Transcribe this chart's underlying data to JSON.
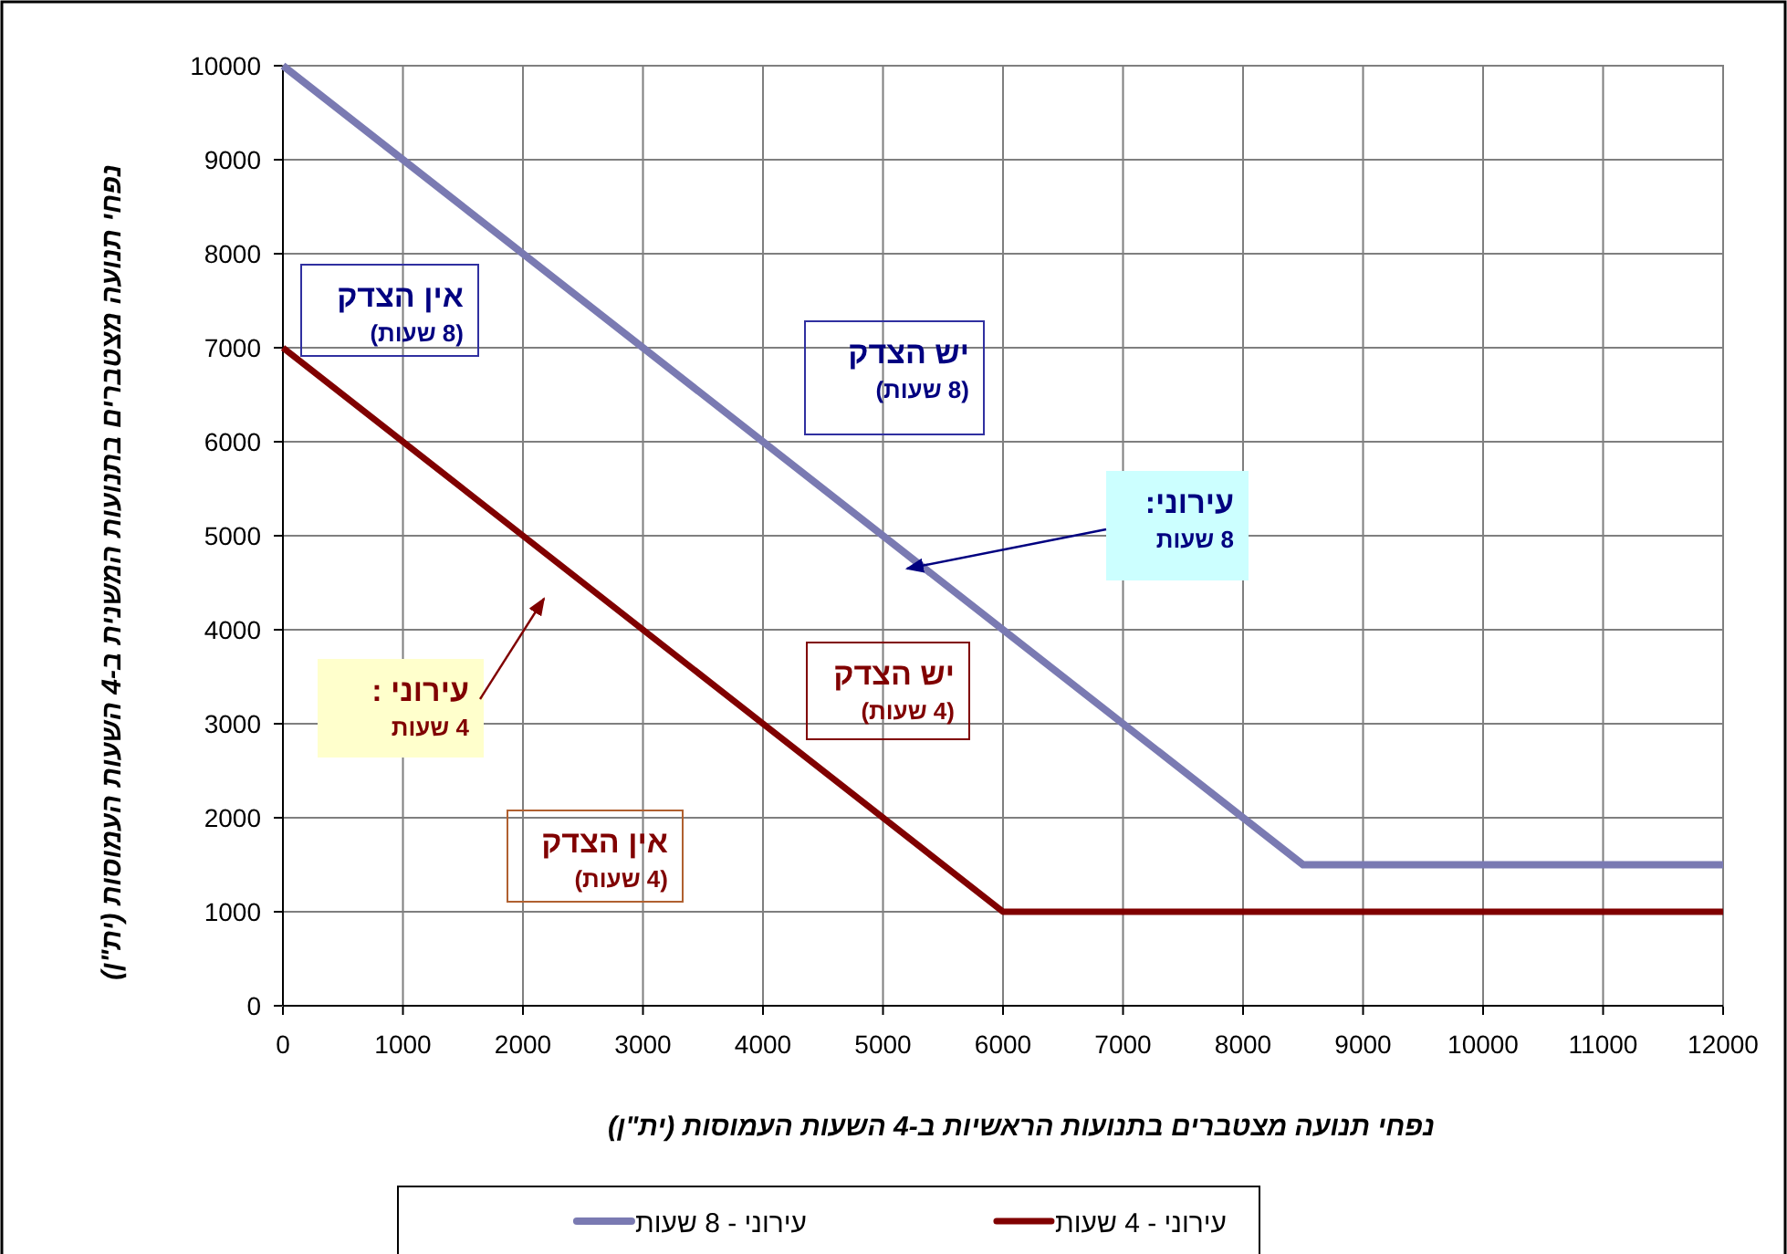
{
  "chart_data": {
    "type": "line",
    "xlabel": "נפחי תנועה מצטברים בתנועות הראשיות ב-4 השעות העמוסות (ית\"ן)",
    "ylabel": "נפחי תנועה מצטברים בתנועות המשנית ב-4 השעות העמוסות (ית\"ן)",
    "xlim": [
      0,
      12000
    ],
    "ylim": [
      0,
      10000
    ],
    "xticks": [
      0,
      1000,
      2000,
      3000,
      4000,
      5000,
      6000,
      7000,
      8000,
      9000,
      10000,
      11000,
      12000
    ],
    "yticks": [
      0,
      1000,
      2000,
      3000,
      4000,
      5000,
      6000,
      7000,
      8000,
      9000,
      10000
    ],
    "grid": true,
    "legend": "bottom",
    "marker": "none",
    "line_style": "solid",
    "series": [
      {
        "name": "עירוני - 8 שעות",
        "color": "#7a7ab2",
        "x": [
          0,
          8500,
          12000
        ],
        "values": [
          10000,
          1500,
          1500
        ]
      },
      {
        "name": "עירוני - 4 שעות",
        "color": "#800000",
        "x": [
          0,
          6000,
          12000
        ],
        "values": [
          7000,
          1000,
          1000
        ]
      }
    ],
    "annotations": [
      "אין הצדק",
      "(8 שעות)",
      "יש הצדק",
      "(8 שעות)",
      {
        "text": "עירוני:",
        "x": 5200,
        "y": 4650
      },
      "8 שעות",
      "עירוני :",
      "4 שעות",
      "יש הצדק",
      "(4 שעות)",
      "אין הצדק",
      "(4 שעות)"
    ]
  }
}
